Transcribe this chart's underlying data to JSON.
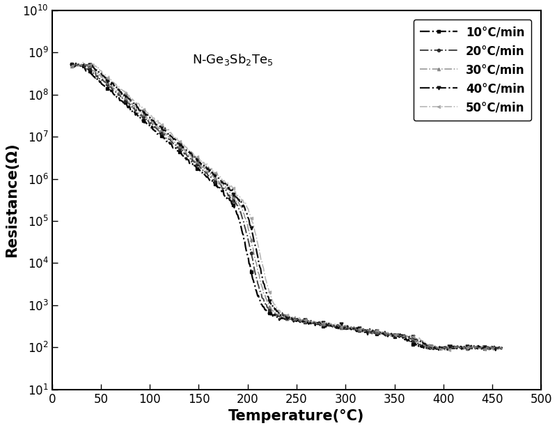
{
  "title": "N-Ge$_3$Sb$_2$Te$_5$",
  "xlabel": "Temperature(°C)",
  "ylabel": "Resistance(Ω)",
  "xlim": [
    0,
    500
  ],
  "ylim": [
    10,
    10000000000.0
  ],
  "series": [
    {
      "label": "10°C/min",
      "color": "#000000",
      "linestyle": "-.",
      "linewidth": 1.6,
      "marker": "s",
      "markersize": 3.5,
      "markevery": 25,
      "alpha": 1.0,
      "x_shift": 0.0,
      "noise_seed": 10
    },
    {
      "label": "20°C/min",
      "color": "#222222",
      "linestyle": "-.",
      "linewidth": 1.4,
      "marker": "o",
      "markersize": 3,
      "markevery": 25,
      "alpha": 0.85,
      "x_shift": 4.0,
      "noise_seed": 20
    },
    {
      "label": "30°C/min",
      "color": "#777777",
      "linestyle": "-.",
      "linewidth": 1.2,
      "marker": "^",
      "markersize": 3,
      "markevery": 25,
      "alpha": 0.75,
      "x_shift": 7.0,
      "noise_seed": 30
    },
    {
      "label": "40°C/min",
      "color": "#111111",
      "linestyle": "-.",
      "linewidth": 1.6,
      "marker": "v",
      "markersize": 3.5,
      "markevery": 25,
      "alpha": 1.0,
      "x_shift": 10.0,
      "noise_seed": 40
    },
    {
      "label": "50°C/min",
      "color": "#999999",
      "linestyle": "-.",
      "linewidth": 1.2,
      "marker": "<",
      "markersize": 3,
      "markevery": 25,
      "alpha": 0.7,
      "x_shift": 13.0,
      "noise_seed": 50
    }
  ],
  "background_color": "#ffffff",
  "title_fontsize": 13,
  "label_fontsize": 15,
  "tick_fontsize": 12,
  "legend_fontsize": 11
}
